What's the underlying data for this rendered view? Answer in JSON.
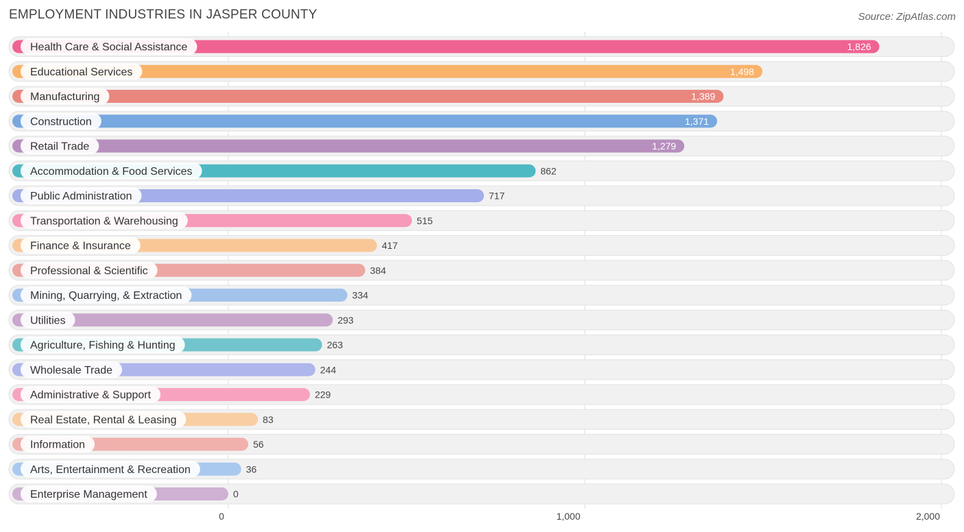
{
  "header": {
    "title": "EMPLOYMENT INDUSTRIES IN JASPER COUNTY",
    "source": "Source: ZipAtlas.com"
  },
  "chart_data": {
    "type": "bar",
    "orientation": "horizontal",
    "title": "EMPLOYMENT INDUSTRIES IN JASPER COUNTY",
    "xlabel": "",
    "ylabel": "",
    "xlim": [
      0,
      2000
    ],
    "ticks": [
      {
        "value": 0,
        "label": "0"
      },
      {
        "value": 1000,
        "label": "1,000"
      },
      {
        "value": 2000,
        "label": "2,000"
      }
    ],
    "grid": true,
    "bars": [
      {
        "category": "Health Care & Social Assistance",
        "value": 1826,
        "label": "1,826",
        "color": "#f06292"
      },
      {
        "category": "Educational Services",
        "value": 1498,
        "label": "1,498",
        "color": "#f9b26a"
      },
      {
        "category": "Manufacturing",
        "value": 1389,
        "label": "1,389",
        "color": "#e9877f"
      },
      {
        "category": "Construction",
        "value": 1371,
        "label": "1,371",
        "color": "#77a8df"
      },
      {
        "category": "Retail Trade",
        "value": 1279,
        "label": "1,279",
        "color": "#b78fbe"
      },
      {
        "category": "Accommodation & Food Services",
        "value": 862,
        "label": "862",
        "color": "#4fb9c3"
      },
      {
        "category": "Public Administration",
        "value": 717,
        "label": "717",
        "color": "#a4aee9"
      },
      {
        "category": "Transportation & Warehousing",
        "value": 515,
        "label": "515",
        "color": "#f799b8"
      },
      {
        "category": "Finance & Insurance",
        "value": 417,
        "label": "417",
        "color": "#f9c797"
      },
      {
        "category": "Professional & Scientific",
        "value": 384,
        "label": "384",
        "color": "#eda6a2"
      },
      {
        "category": "Mining, Quarrying, & Extraction",
        "value": 334,
        "label": "334",
        "color": "#a3c3ec"
      },
      {
        "category": "Utilities",
        "value": 293,
        "label": "293",
        "color": "#c9a7cd"
      },
      {
        "category": "Agriculture, Fishing & Hunting",
        "value": 263,
        "label": "263",
        "color": "#72c5cc"
      },
      {
        "category": "Wholesale Trade",
        "value": 244,
        "label": "244",
        "color": "#afb6ec"
      },
      {
        "category": "Administrative & Support",
        "value": 229,
        "label": "229",
        "color": "#f7a3bf"
      },
      {
        "category": "Real Estate, Rental & Leasing",
        "value": 83,
        "label": "83",
        "color": "#f9cea3"
      },
      {
        "category": "Information",
        "value": 56,
        "label": "56",
        "color": "#f0b1ad"
      },
      {
        "category": "Arts, Entertainment & Recreation",
        "value": 36,
        "label": "36",
        "color": "#a9c9ef"
      },
      {
        "category": "Enterprise Management",
        "value": 0,
        "label": "0",
        "color": "#cfb1d3"
      }
    ]
  }
}
